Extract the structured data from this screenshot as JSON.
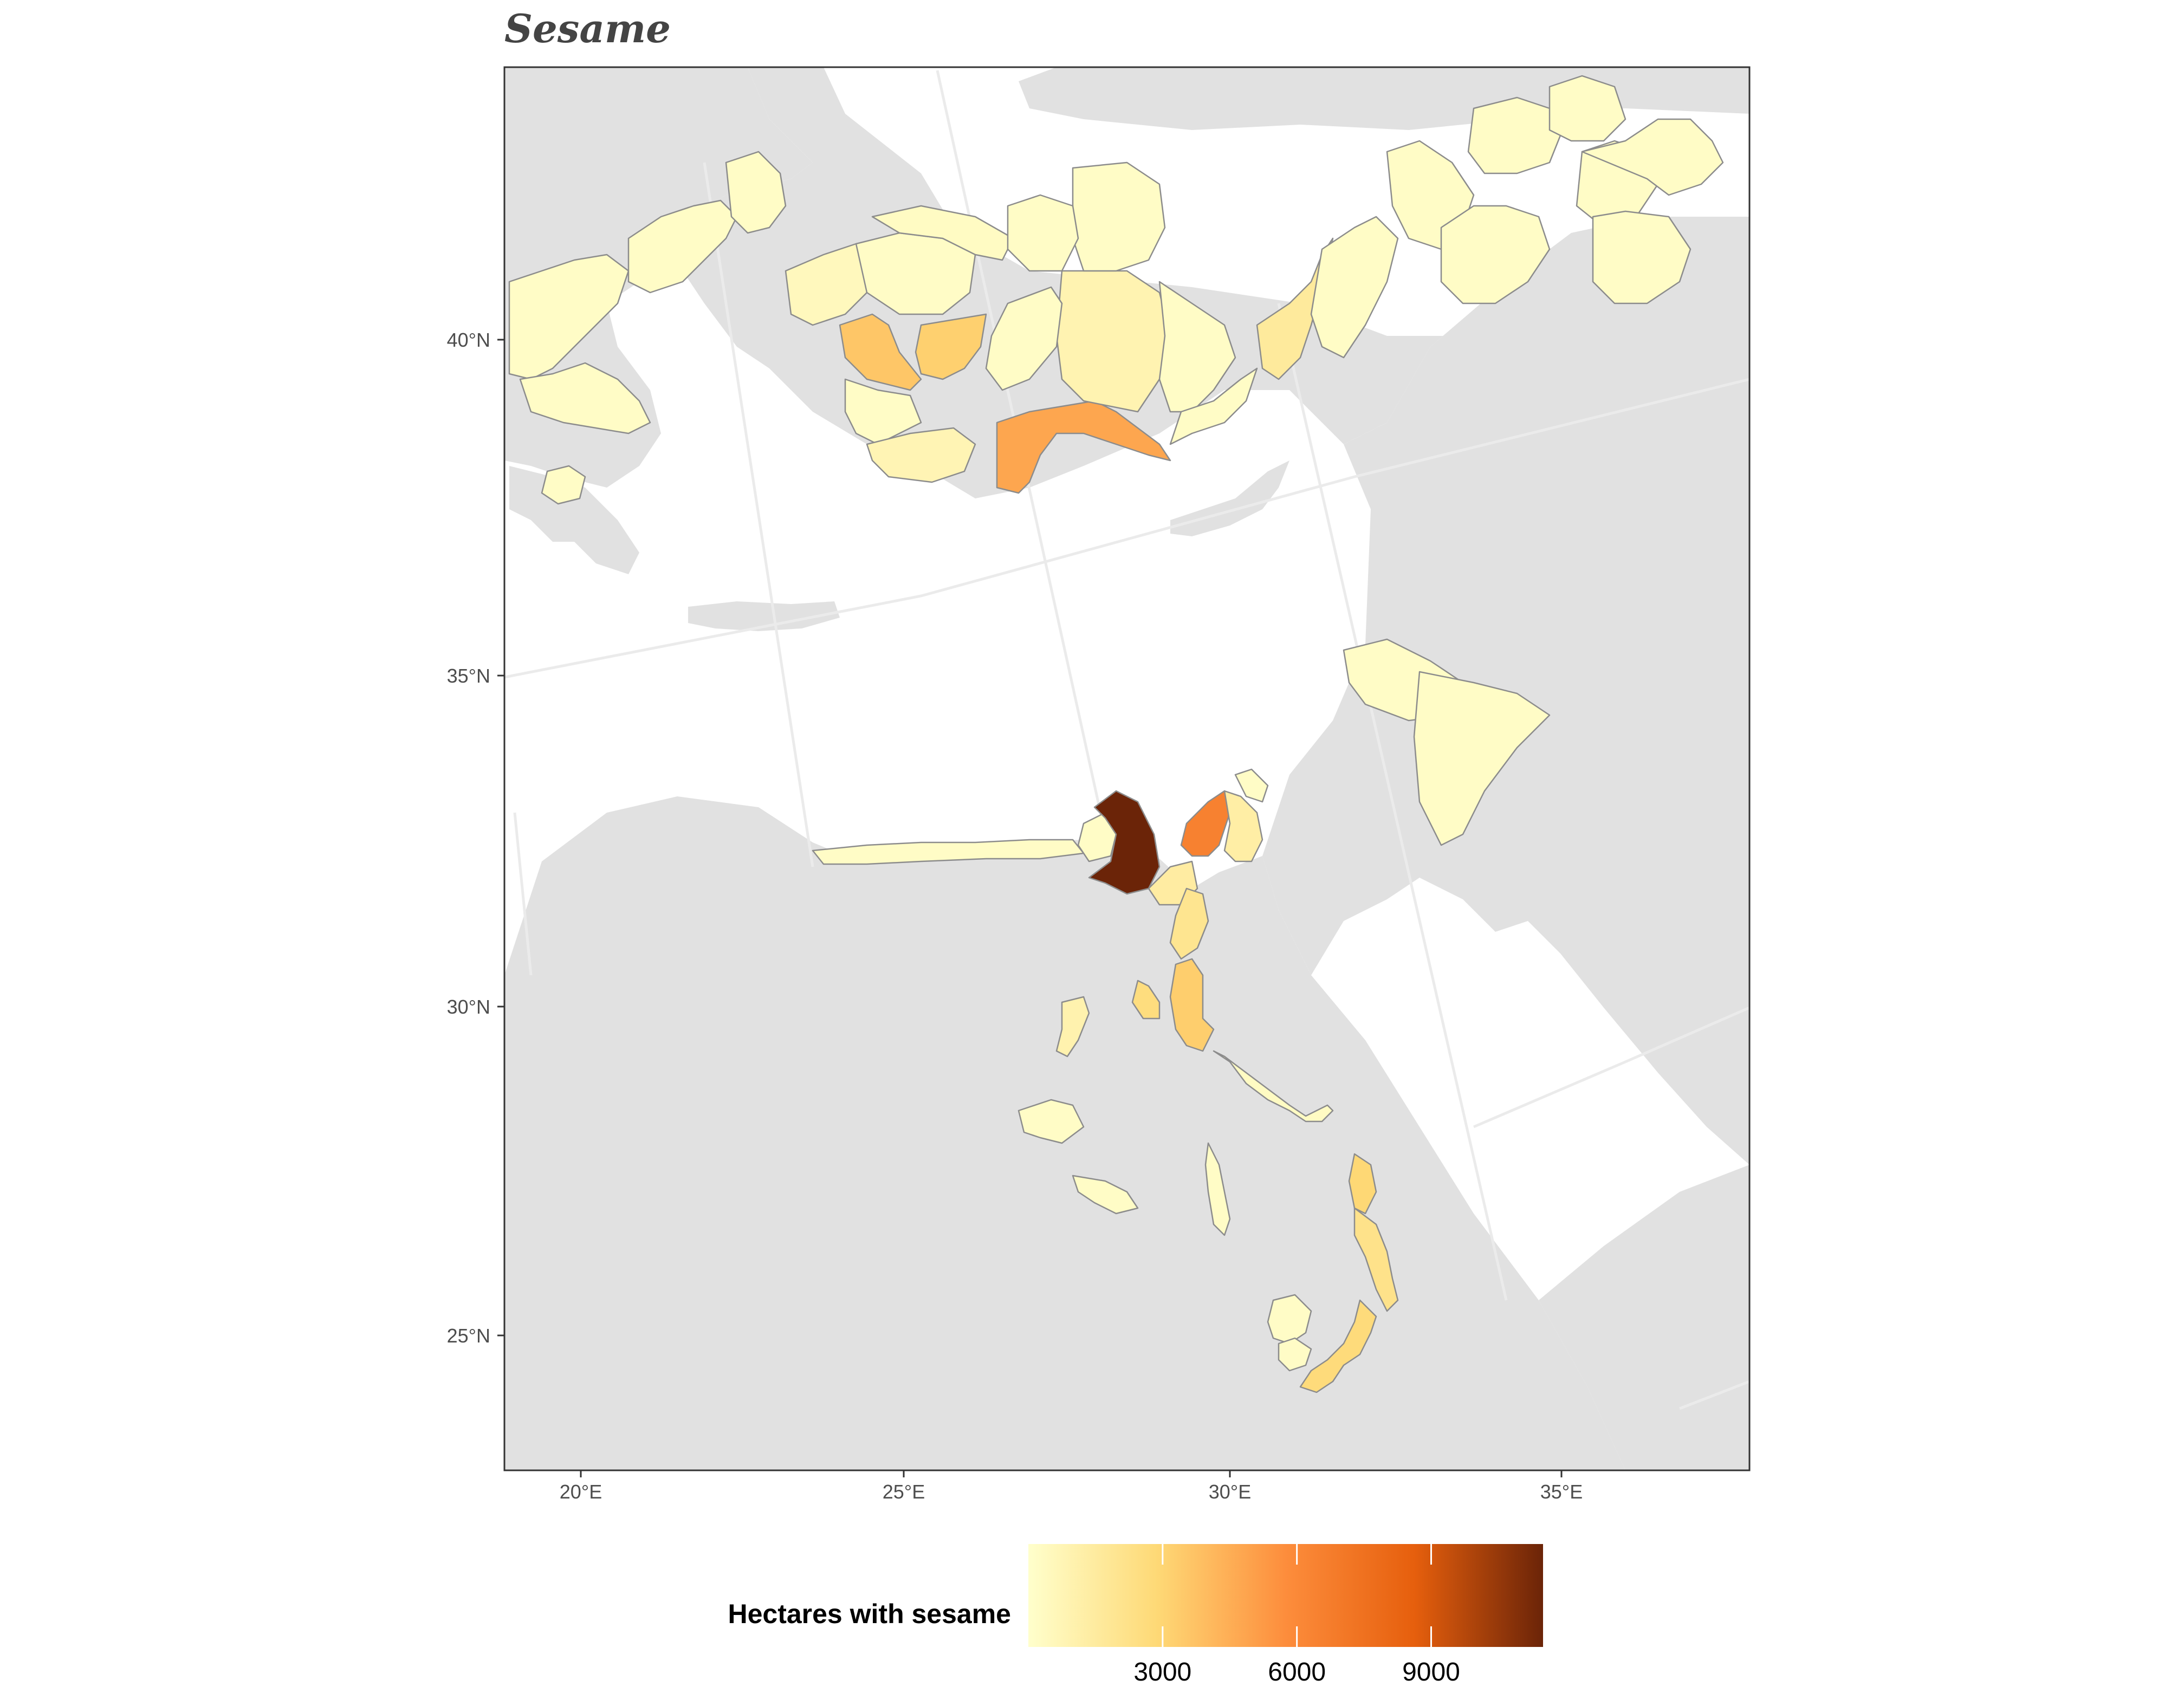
{
  "title": "Sesame",
  "axes": {
    "x_ticks": [
      "20°E",
      "25°E",
      "30°E",
      "35°E"
    ],
    "y_ticks": [
      "40°N",
      "35°N",
      "30°N",
      "25°N"
    ]
  },
  "legend": {
    "title": "Hectares with sesame",
    "ticks": [
      "3000",
      "6000",
      "9000"
    ],
    "range": [
      0,
      11500
    ],
    "colors": [
      "#ffffcc",
      "#fed976",
      "#fd8d3c",
      "#e65f0d",
      "#6b2408"
    ]
  },
  "colors": {
    "panel_background": "#e1e1e1",
    "sea": "#ffffff",
    "region_border": "#8c8c8c",
    "highest_value_region": "#6b2408"
  }
}
